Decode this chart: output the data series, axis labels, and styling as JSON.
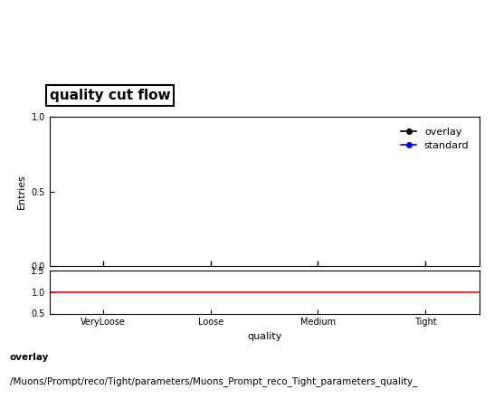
{
  "title": "quality cut flow",
  "xlabel": "quality",
  "ylabel_main": "Entries",
  "categories": [
    "VeryLoose",
    "Loose",
    "Medium",
    "Tight"
  ],
  "x_positions": [
    0.5,
    1.5,
    2.5,
    3.5
  ],
  "xlim": [
    0,
    4
  ],
  "main_ylim": [
    0,
    1
  ],
  "main_yticks": [
    0,
    0.5,
    1
  ],
  "ratio_ylim": [
    0.5,
    1.5
  ],
  "ratio_yticks": [
    0.5,
    1,
    1.5
  ],
  "overlay_color": "#000000",
  "standard_color": "#0000ff",
  "ratio_line_color": "#ff0000",
  "legend_entries": [
    "overlay",
    "standard"
  ],
  "footer_line1": "overlay",
  "footer_line2": "/Muons/Prompt/reco/Tight/parameters/Muons_Prompt_reco_Tight_parameters_quality_",
  "title_fontsize": 11,
  "axis_fontsize": 8,
  "tick_fontsize": 7,
  "legend_fontsize": 8,
  "footer_fontsize": 7.5
}
